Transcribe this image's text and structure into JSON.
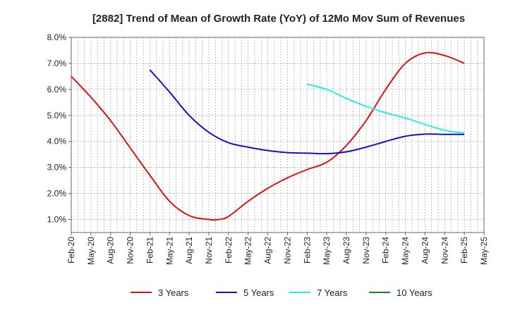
{
  "chart_data": {
    "type": "line",
    "title": "[2882]  Trend of Mean of Growth Rate (YoY) of 12Mo Mov Sum of Revenues",
    "xlabel": "",
    "ylabel": "",
    "ylim": [
      0.5,
      8.0
    ],
    "y_ticks": [
      "1.0%",
      "2.0%",
      "3.0%",
      "4.0%",
      "5.0%",
      "6.0%",
      "7.0%",
      "8.0%"
    ],
    "y_tick_values": [
      1,
      2,
      3,
      4,
      5,
      6,
      7,
      8
    ],
    "x_ticks": [
      "Feb-20",
      "May-20",
      "Aug-20",
      "Nov-20",
      "Feb-21",
      "May-21",
      "Aug-21",
      "Nov-21",
      "Feb-22",
      "May-22",
      "Aug-22",
      "Nov-22",
      "Feb-23",
      "May-23",
      "Aug-23",
      "Nov-23",
      "Feb-24",
      "May-24",
      "Aug-24",
      "Nov-24",
      "Feb-25",
      "May-25"
    ],
    "x_range_quarters": [
      0,
      21
    ],
    "grid": true,
    "legend_position": "bottom",
    "series": [
      {
        "name": "3 Years",
        "color": "#dd1111",
        "x": [
          0,
          1,
          2,
          3,
          4,
          5,
          6,
          7,
          7.5,
          8,
          9,
          10,
          11,
          12,
          13,
          14,
          15,
          16,
          17,
          18,
          19,
          20
        ],
        "values": [
          6.5,
          5.7,
          4.8,
          3.75,
          2.7,
          1.7,
          1.15,
          1.0,
          1.0,
          1.12,
          1.7,
          2.2,
          2.6,
          2.92,
          3.2,
          3.85,
          4.8,
          6.0,
          7.0,
          7.4,
          7.3,
          7.0
        ]
      },
      {
        "name": "5 Years",
        "color": "#1111cc",
        "x": [
          4,
          5,
          6,
          7,
          8,
          9,
          10,
          11,
          12,
          13,
          14,
          15,
          16,
          17,
          18,
          19,
          20
        ],
        "values": [
          6.75,
          5.9,
          5.0,
          4.35,
          3.95,
          3.78,
          3.65,
          3.57,
          3.55,
          3.53,
          3.6,
          3.78,
          4.0,
          4.2,
          4.28,
          4.27,
          4.27
        ]
      },
      {
        "name": "7 Years",
        "color": "#22eeee",
        "x": [
          12,
          13,
          14,
          15,
          16,
          17,
          18,
          19,
          20
        ],
        "values": [
          6.2,
          6.0,
          5.65,
          5.35,
          5.1,
          4.9,
          4.65,
          4.43,
          4.32
        ]
      },
      {
        "name": "10 Years",
        "color": "#118811",
        "x": [],
        "values": []
      }
    ]
  }
}
